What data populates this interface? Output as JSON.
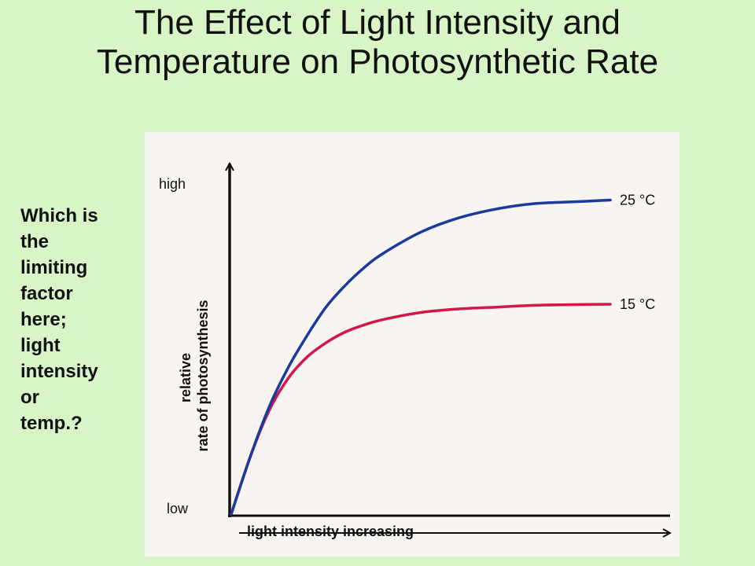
{
  "slide": {
    "title_lines": [
      "The Effect of Light Intensity and",
      "Temperature on Photosynthetic Rate"
    ],
    "background_color": "#d8f5c8",
    "question_lines": [
      "Which is",
      "the",
      "limiting",
      "factor",
      "here;",
      "light",
      "intensity",
      "or",
      "temp.?"
    ]
  },
  "chart_data": {
    "type": "line",
    "title": "",
    "xlabel": "light intensity increasing",
    "ylabel_lines": [
      "relative",
      "rate of photosynthesis"
    ],
    "y_tick_labels": {
      "top": "high",
      "bottom": "low"
    },
    "xlim": [
      0,
      1
    ],
    "ylim": [
      0,
      1
    ],
    "grid": false,
    "legend": "none (series labelled at line ends)",
    "series": [
      {
        "name": "25 °C",
        "color": "#1a3a9c",
        "x": [
          0,
          0.05,
          0.1,
          0.15,
          0.2,
          0.25,
          0.3,
          0.35,
          0.4,
          0.5,
          0.6,
          0.7,
          0.8,
          0.9,
          1.0
        ],
        "y": [
          0,
          0.16,
          0.3,
          0.41,
          0.5,
          0.58,
          0.64,
          0.69,
          0.73,
          0.79,
          0.83,
          0.855,
          0.87,
          0.875,
          0.88
        ]
      },
      {
        "name": "15 °C",
        "color": "#d0184a",
        "x": [
          0,
          0.05,
          0.1,
          0.15,
          0.2,
          0.25,
          0.3,
          0.35,
          0.4,
          0.5,
          0.6,
          0.7,
          0.8,
          0.9,
          1.0
        ],
        "y": [
          0,
          0.16,
          0.29,
          0.38,
          0.44,
          0.48,
          0.51,
          0.53,
          0.545,
          0.565,
          0.575,
          0.58,
          0.585,
          0.587,
          0.588
        ]
      }
    ]
  }
}
